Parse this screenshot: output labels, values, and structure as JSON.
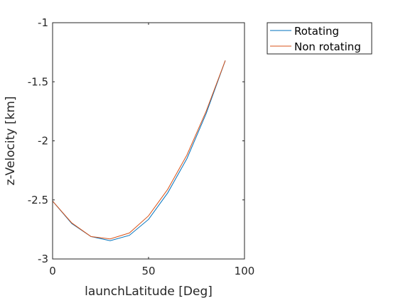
{
  "chart_data": {
    "type": "line",
    "xlabel": "launchLatitude [Deg]",
    "ylabel": "z-Velocity [km]",
    "xlim": [
      0,
      100
    ],
    "ylim": [
      -3,
      -1
    ],
    "xticks": [
      0,
      50,
      100
    ],
    "xtick_labels": [
      "0",
      "50",
      "100"
    ],
    "yticks": [
      -3,
      -2.5,
      -2,
      -1.5,
      -1
    ],
    "ytick_labels": [
      "-3",
      "-2.5",
      "-2",
      "-1.5",
      "-1"
    ],
    "grid": false,
    "legend_position": "outside top-right",
    "x": [
      0,
      10,
      20,
      30,
      40,
      50,
      60,
      70,
      80,
      90
    ],
    "series": [
      {
        "name": "Rotating",
        "color": "#0072BD",
        "values": [
          -2.51,
          -2.7,
          -2.81,
          -2.845,
          -2.8,
          -2.665,
          -2.44,
          -2.15,
          -1.77,
          -1.32
        ]
      },
      {
        "name": "Non rotating",
        "color": "#D95319",
        "values": [
          -2.51,
          -2.695,
          -2.81,
          -2.83,
          -2.78,
          -2.635,
          -2.41,
          -2.12,
          -1.75,
          -1.32
        ]
      }
    ]
  }
}
